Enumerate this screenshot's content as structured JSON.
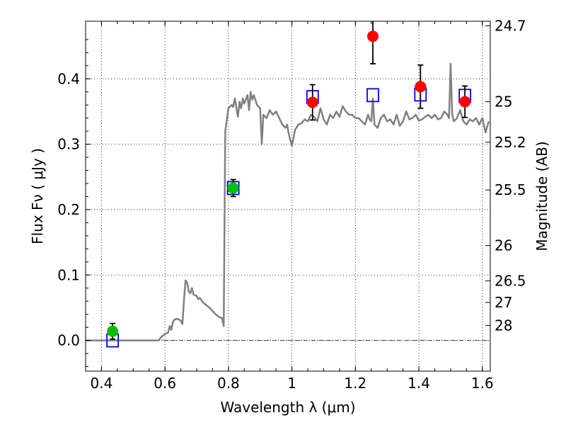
{
  "chart_data": {
    "type": "scatter",
    "xlabel": "Wavelength  λ (μm)",
    "ylabel": "Flux  Fν  ( μJy )",
    "ylabel_right": "Magnitude (AB)",
    "xlim": [
      0.35,
      1.625
    ],
    "ylim": [
      -0.047,
      0.488
    ],
    "grid": true,
    "x_ticks": [
      0.4,
      0.6,
      0.8,
      1.0,
      1.2,
      1.4,
      1.6
    ],
    "x_tick_labels": [
      "0.4",
      "0.6",
      "0.8",
      "1",
      "1.2",
      "1.4",
      "1.6"
    ],
    "y_ticks": [
      0.0,
      0.1,
      0.2,
      0.3,
      0.4
    ],
    "y_tick_labels": [
      "0.0",
      "0.1",
      "0.2",
      "0.3",
      "0.4"
    ],
    "mag_ticks": [
      {
        "label": "24.7",
        "flux": 0.481
      },
      {
        "label": "25",
        "flux": 0.365
      },
      {
        "label": "25.2",
        "flux": 0.303
      },
      {
        "label": "25.5",
        "flux": 0.23
      },
      {
        "label": "26",
        "flux": 0.145
      },
      {
        "label": "26.5",
        "flux": 0.091
      },
      {
        "label": "27",
        "flux": 0.058
      },
      {
        "label": "28",
        "flux": 0.023
      }
    ],
    "series": [
      {
        "kind": "line",
        "color": "#808080",
        "x": [
          0.35,
          0.58,
          0.59,
          0.6,
          0.61,
          0.615,
          0.62,
          0.625,
          0.63,
          0.64,
          0.65,
          0.655,
          0.66,
          0.665,
          0.67,
          0.675,
          0.68,
          0.685,
          0.69,
          0.7,
          0.705,
          0.71,
          0.72,
          0.73,
          0.74,
          0.75,
          0.76,
          0.77,
          0.78,
          0.785,
          0.79,
          0.8,
          0.81,
          0.815,
          0.82,
          0.83,
          0.835,
          0.84,
          0.845,
          0.85,
          0.86,
          0.865,
          0.87,
          0.875,
          0.88,
          0.89,
          0.9,
          0.905,
          0.91,
          0.92,
          0.93,
          0.94,
          0.95,
          0.96,
          0.97,
          0.98,
          0.985,
          0.99,
          1.0,
          1.01,
          1.02,
          1.03,
          1.04,
          1.05,
          1.06,
          1.07,
          1.08,
          1.09,
          1.1,
          1.11,
          1.12,
          1.13,
          1.14,
          1.15,
          1.16,
          1.17,
          1.18,
          1.19,
          1.2,
          1.21,
          1.22,
          1.23,
          1.24,
          1.245,
          1.25,
          1.255,
          1.26,
          1.27,
          1.28,
          1.29,
          1.3,
          1.31,
          1.32,
          1.33,
          1.34,
          1.35,
          1.36,
          1.37,
          1.38,
          1.39,
          1.4,
          1.41,
          1.42,
          1.43,
          1.44,
          1.45,
          1.46,
          1.47,
          1.48,
          1.49,
          1.495,
          1.5,
          1.505,
          1.51,
          1.52,
          1.53,
          1.54,
          1.55,
          1.56,
          1.57,
          1.58,
          1.59,
          1.6,
          1.61,
          1.62
        ],
        "y": [
          0.0,
          0.0,
          0.006,
          0.01,
          0.012,
          0.022,
          0.016,
          0.028,
          0.032,
          0.033,
          0.03,
          0.025,
          0.063,
          0.092,
          0.088,
          0.075,
          0.072,
          0.08,
          0.07,
          0.068,
          0.063,
          0.065,
          0.058,
          0.054,
          0.05,
          0.045,
          0.04,
          0.036,
          0.034,
          0.022,
          0.32,
          0.355,
          0.36,
          0.357,
          0.37,
          0.342,
          0.365,
          0.355,
          0.37,
          0.362,
          0.375,
          0.352,
          0.38,
          0.368,
          0.375,
          0.36,
          0.355,
          0.3,
          0.345,
          0.34,
          0.352,
          0.345,
          0.35,
          0.34,
          0.33,
          0.325,
          0.33,
          0.316,
          0.297,
          0.322,
          0.33,
          0.332,
          0.338,
          0.335,
          0.345,
          0.342,
          0.335,
          0.355,
          0.338,
          0.33,
          0.345,
          0.34,
          0.35,
          0.342,
          0.358,
          0.35,
          0.345,
          0.345,
          0.34,
          0.34,
          0.335,
          0.33,
          0.345,
          0.338,
          0.335,
          0.37,
          0.33,
          0.325,
          0.34,
          0.345,
          0.335,
          0.338,
          0.33,
          0.345,
          0.328,
          0.335,
          0.35,
          0.338,
          0.34,
          0.345,
          0.336,
          0.338,
          0.342,
          0.345,
          0.34,
          0.345,
          0.338,
          0.34,
          0.35,
          0.345,
          0.34,
          0.423,
          0.345,
          0.335,
          0.34,
          0.352,
          0.335,
          0.33,
          0.338,
          0.335,
          0.34,
          0.33,
          0.34,
          0.318,
          0.335
        ]
      },
      {
        "kind": "open-square",
        "color": "#0000ff",
        "x": [
          0.435,
          0.815,
          1.065,
          1.255,
          1.405,
          1.545
        ],
        "y": [
          0.0,
          0.233,
          0.372,
          0.375,
          0.376,
          0.374
        ]
      },
      {
        "kind": "dot-errorbar",
        "color": "#00c000",
        "x": [
          0.435,
          0.815
        ],
        "y": [
          0.014,
          0.233
        ],
        "err": [
          0.012,
          0.013
        ]
      },
      {
        "kind": "dot-errorbar",
        "color": "#ff0000",
        "x": [
          1.065,
          1.255,
          1.405,
          1.545
        ],
        "y": [
          0.364,
          0.465,
          0.388,
          0.365
        ],
        "err": [
          0.027,
          0.042,
          0.033,
          0.024
        ]
      }
    ]
  }
}
